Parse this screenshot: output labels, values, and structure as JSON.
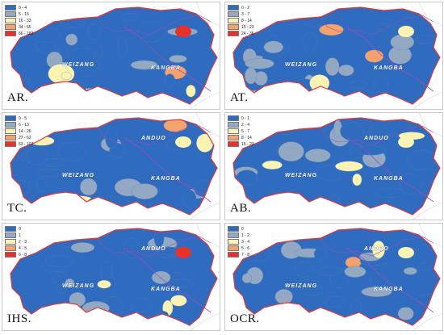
{
  "colors": {
    "class1": "#2f6bbf",
    "class2": "#93a9c3",
    "class3": "#fbf3b3",
    "class4": "#f6a26e",
    "class5": "#e8312a",
    "border": "#e03a3a",
    "line": "#9b4db8"
  },
  "panels": [
    {
      "label": "AR.",
      "legend": [
        "0 - 4",
        "5 - 15",
        "16 - 33",
        "34 - 65",
        "66 - 183"
      ],
      "regions": [
        "WEIZANG",
        "KANGBA"
      ]
    },
    {
      "label": "AT.",
      "legend": [
        "0 - 2",
        "3 - 7",
        "8 - 14",
        "15 - 23",
        "24 - 36"
      ],
      "regions": [
        "WEIZANG",
        "KANGBA"
      ]
    },
    {
      "label": "TC.",
      "legend": [
        "0 - 5",
        "6 - 13",
        "14 - 26",
        "27 - 62",
        "63 - 107"
      ],
      "regions": [
        "ANDUO",
        "WEIZANG",
        "KANGBA"
      ]
    },
    {
      "label": "AB.",
      "legend": [
        "0 - 1",
        "2 - 4",
        "5 - 7",
        "8 - 14",
        "15 - 23"
      ],
      "regions": [
        "ANDUO",
        "WEIZANG",
        "KANGBA"
      ]
    },
    {
      "label": "IHS.",
      "legend": [
        "0",
        "1",
        "2 - 3",
        "4 - 5",
        "6 - 8"
      ],
      "regions": [
        "ANDUO",
        "WEIZANG",
        "KANGBA"
      ]
    },
    {
      "label": "OCR.",
      "legend": [
        "0",
        "1 - 2",
        "3 - 4",
        "5 - 6",
        "7 - 8"
      ],
      "regions": [
        "ANDUO",
        "WEIZANG",
        "KANGBA"
      ]
    }
  ]
}
